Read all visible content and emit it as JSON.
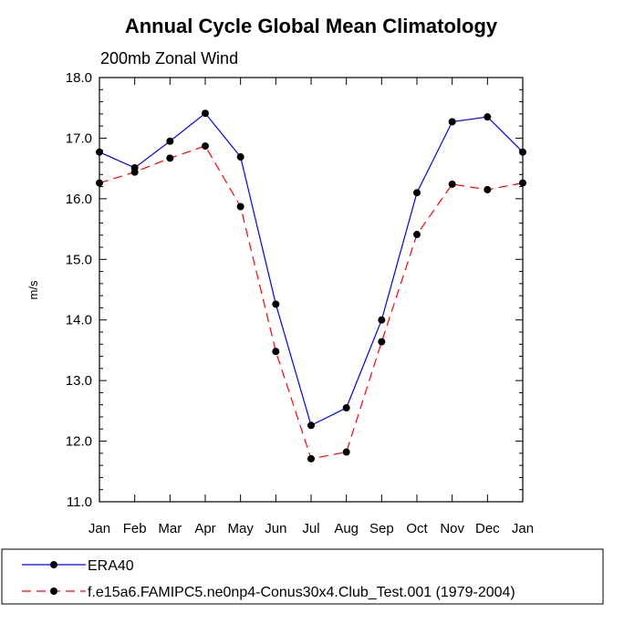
{
  "chart_data": {
    "type": "line",
    "title": "Annual Cycle Global Mean Climatology",
    "subtitle": "200mb Zonal Wind",
    "xlabel": "",
    "ylabel": "m/s",
    "categories": [
      "Jan",
      "Feb",
      "Mar",
      "Apr",
      "May",
      "Jun",
      "Jul",
      "Aug",
      "Sep",
      "Oct",
      "Nov",
      "Dec",
      "Jan"
    ],
    "ylim": [
      11.0,
      18.0
    ],
    "yticks": [
      "11.0",
      "12.0",
      "13.0",
      "14.0",
      "15.0",
      "16.0",
      "17.0",
      "18.0"
    ],
    "series": [
      {
        "name": "ERA40",
        "color": "#0000ff",
        "dash": "solid",
        "values": [
          16.77,
          16.51,
          16.95,
          17.41,
          16.69,
          14.26,
          12.26,
          12.55,
          14.0,
          16.1,
          17.27,
          17.35,
          16.77
        ]
      },
      {
        "name": "f.e15a6.FAMIPC5.ne0np4-Conus30x4.Club_Test.001 (1979-2004)",
        "color": "#ff0000",
        "dash": "dashed",
        "values": [
          16.26,
          16.44,
          16.67,
          16.87,
          15.87,
          13.48,
          11.71,
          11.82,
          13.64,
          15.41,
          16.24,
          16.15,
          16.26
        ]
      }
    ],
    "legend_position": "bottom"
  }
}
